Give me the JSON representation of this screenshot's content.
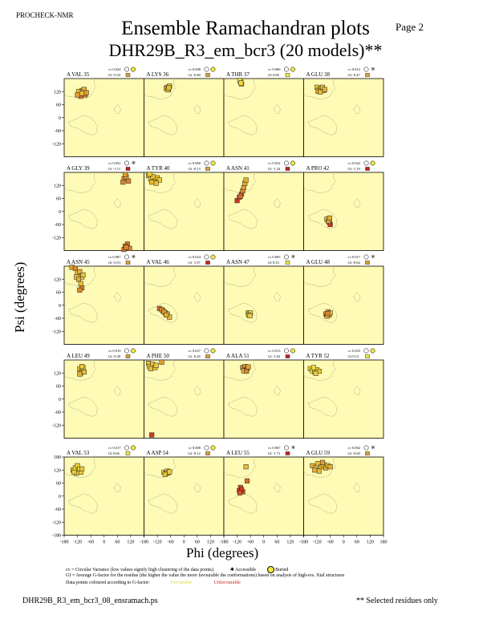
{
  "header": {
    "program": "PROCHECK-NMR",
    "page": "Page  2",
    "title": "Ensemble Ramachandran plots",
    "subtitle": "DHR29B_R3_em_bcr3 (20 models)**"
  },
  "axes": {
    "xlabel": "Phi (degrees)",
    "ylabel": "Psi (degrees)",
    "xticks": [
      "-180",
      "-120",
      "-60",
      "0",
      "60",
      "120",
      "180"
    ],
    "yticks": [
      "120",
      "60",
      "0",
      "-60",
      "-120"
    ],
    "yticks_bottom": [
      "180",
      "120",
      "60",
      "0",
      "-60",
      "-120",
      "-180"
    ]
  },
  "legend": {
    "cv_text": "cv = Circular Variance (low values signify high clustering of the data points).",
    "accessible": "Accessible",
    "buried": "Buried",
    "gf_text": "Gf = Average G-factor for the residue (the higher the value the more favourable the conformations) based on analysis of high-res. Xtal structures",
    "colour_text": "Data points coloured according to G-factor:",
    "favourable": "Favourable",
    "unfavourable": "Unfavourable"
  },
  "footer": {
    "file": "DHR29B_R3_em_bcr3_08_ensramach.ps",
    "note": "** Selected residues only"
  },
  "colors": {
    "panel_bg": "#fefbb6",
    "favourable": "#f4ea3c",
    "mid": "#e0a030",
    "unfavourable": "#cc1f1f"
  },
  "chart_data": {
    "type": "scatter",
    "xlim": [
      -180,
      180
    ],
    "ylim": [
      -180,
      180
    ],
    "panels": [
      {
        "label": "A VAL 35",
        "cv": "cv 0.024",
        "gf": "Gf -0.52",
        "access": "buried",
        "pts": [
          [
            -100,
            125,
            0.3
          ],
          [
            -110,
            110,
            0.5
          ],
          [
            -95,
            118,
            0.4
          ],
          [
            -85,
            105,
            0.6
          ],
          [
            -115,
            120,
            0.3
          ],
          [
            -90,
            130,
            0.4
          ],
          [
            -105,
            100,
            0.7
          ],
          [
            -80,
            115,
            0.5
          ],
          [
            -120,
            105,
            0.5
          ],
          [
            -100,
            112,
            0.3
          ]
        ]
      },
      {
        "label": "A LYS 36",
        "cv": "cv 0.008",
        "gf": "Gf -0.48",
        "access": "buried",
        "pts": [
          [
            -75,
            140,
            0.3
          ],
          [
            -70,
            130,
            0.4
          ],
          [
            -65,
            145,
            0.3
          ],
          [
            -80,
            135,
            0.4
          ],
          [
            -72,
            128,
            0.3
          ],
          [
            -68,
            138,
            0.3
          ]
        ]
      },
      {
        "label": "A THR 37",
        "cv": "cv 0.006",
        "gf": "Gf 0.06",
        "access": "buried",
        "pts": [
          [
            -105,
            165,
            0.1
          ],
          [
            -100,
            155,
            0.2
          ],
          [
            -108,
            172,
            0.1
          ],
          [
            -103,
            160,
            0.1
          ]
        ]
      },
      {
        "label": "A GLU 38",
        "cv": "cv 0.012",
        "gf": "Gf -0.47",
        "access": "accessible",
        "pts": [
          [
            -120,
            140,
            0.2
          ],
          [
            -110,
            130,
            0.3
          ],
          [
            -100,
            135,
            0.4
          ],
          [
            -90,
            125,
            0.3
          ],
          [
            -115,
            122,
            0.5
          ],
          [
            -95,
            140,
            0.3
          ],
          [
            -105,
            118,
            0.3
          ],
          [
            -85,
            130,
            0.4
          ]
        ]
      },
      {
        "label": "A GLY 39",
        "cv": "cv 0.052",
        "gf": "Gf -1.11",
        "access": "accessible",
        "pts": [
          [
            90,
            150,
            0.6
          ],
          [
            100,
            160,
            0.5
          ],
          [
            110,
            140,
            0.6
          ],
          [
            95,
            170,
            0.5
          ],
          [
            85,
            135,
            0.6
          ],
          [
            105,
            -150,
            0.7
          ],
          [
            95,
            -160,
            0.6
          ],
          [
            115,
            -170,
            0.6
          ],
          [
            90,
            -175,
            0.7
          ],
          [
            100,
            -165,
            0.6
          ]
        ]
      },
      {
        "label": "A TYR 40",
        "cv": "cv 0.060",
        "gf": "Gf -0.13",
        "access": "buried",
        "pts": [
          [
            -160,
            165,
            0.2
          ],
          [
            -150,
            150,
            0.2
          ],
          [
            -140,
            160,
            0.3
          ],
          [
            -130,
            140,
            0.2
          ],
          [
            -120,
            155,
            0.3
          ],
          [
            -110,
            145,
            0.2
          ],
          [
            -145,
            135,
            0.3
          ],
          [
            -155,
            172,
            0.2
          ],
          [
            -125,
            130,
            0.3
          ]
        ]
      },
      {
        "label": "A ASN 41",
        "cv": "cv 0.032",
        "gf": "Gf -1.24",
        "access": "buried",
        "pts": [
          [
            -120,
            50,
            0.9
          ],
          [
            -110,
            65,
            0.8
          ],
          [
            -100,
            80,
            0.7
          ],
          [
            -95,
            95,
            0.6
          ],
          [
            -90,
            110,
            0.5
          ],
          [
            -85,
            130,
            0.4
          ],
          [
            -80,
            145,
            0.4
          ],
          [
            -105,
            70,
            0.7
          ]
        ]
      },
      {
        "label": "A PRO 42",
        "cv": "cv 0.022",
        "gf": "Gf -1.19",
        "access": "buried",
        "pts": [
          [
            -70,
            -40,
            0.5
          ],
          [
            -65,
            -50,
            0.6
          ],
          [
            -60,
            -60,
            0.9
          ],
          [
            -75,
            -35,
            0.4
          ],
          [
            -68,
            -45,
            0.5
          ],
          [
            -63,
            -30,
            0.4
          ]
        ]
      },
      {
        "label": "A ASN 45",
        "cv": "cv 0.087",
        "gf": "Gf -0.51",
        "access": "accessible",
        "pts": [
          [
            -145,
            175,
            0.5
          ],
          [
            -130,
            170,
            0.6
          ],
          [
            -120,
            150,
            0.3
          ],
          [
            -110,
            155,
            0.4
          ],
          [
            -125,
            130,
            0.3
          ],
          [
            -100,
            130,
            0.2
          ],
          [
            -115,
            120,
            0.4
          ],
          [
            -105,
            100,
            0.3
          ],
          [
            -100,
            80,
            0.6
          ],
          [
            -110,
            70,
            0.6
          ],
          [
            -95,
            140,
            0.3
          ]
        ]
      },
      {
        "label": "A VAL 46",
        "cv": "cv 0.024",
        "gf": "Gf -1.07",
        "access": "buried",
        "pts": [
          [
            -110,
            -15,
            0.7
          ],
          [
            -95,
            -25,
            0.6
          ],
          [
            -85,
            -35,
            0.5
          ],
          [
            -75,
            -40,
            0.4
          ],
          [
            -65,
            -55,
            0.3
          ],
          [
            -100,
            -20,
            0.6
          ],
          [
            -90,
            -30,
            0.5
          ],
          [
            -80,
            -45,
            0.4
          ]
        ]
      },
      {
        "label": "A ASN 47",
        "cv": "cv 0.005",
        "gf": "Gf 0.33",
        "access": "accessible",
        "pts": [
          [
            -70,
            -35,
            0.1
          ],
          [
            -65,
            -40,
            0.2
          ],
          [
            -60,
            -35,
            0.1
          ],
          [
            -68,
            -45,
            0.1
          ],
          [
            -62,
            -48,
            0.2
          ]
        ]
      },
      {
        "label": "A GLU 48",
        "cv": "cv 0.017",
        "gf": "Gf -0.64",
        "access": "accessible",
        "pts": [
          [
            -80,
            -40,
            0.5
          ],
          [
            -70,
            -30,
            0.4
          ],
          [
            -65,
            -45,
            0.4
          ],
          [
            -75,
            -50,
            0.5
          ],
          [
            -60,
            -35,
            0.3
          ],
          [
            -72,
            -38,
            0.6
          ]
        ]
      },
      {
        "label": "A LEU 49",
        "cv": "cv 0.019",
        "gf": "Gf -0.39",
        "access": "buried",
        "pts": [
          [
            -110,
            140,
            0.3
          ],
          [
            -100,
            130,
            0.2
          ],
          [
            -95,
            145,
            0.3
          ],
          [
            -105,
            120,
            0.2
          ],
          [
            -90,
            125,
            0.3
          ],
          [
            -100,
            150,
            0.2
          ],
          [
            -110,
            115,
            0.4
          ]
        ]
      },
      {
        "label": "A PHE 50",
        "cv": "cv 0.027",
        "gf": "Gf -0.26",
        "access": "buried",
        "pts": [
          [
            -160,
            165,
            0.3
          ],
          [
            -155,
            150,
            0.2
          ],
          [
            -140,
            160,
            0.3
          ],
          [
            -130,
            145,
            0.3
          ],
          [
            -125,
            155,
            0.2
          ],
          [
            -100,
            170,
            0.5
          ],
          [
            -145,
            -165,
            0.9
          ],
          [
            -150,
            140,
            0.3
          ]
        ]
      },
      {
        "label": "A ALA 51",
        "cv": "cv 0.013",
        "gf": "Gf -1.02",
        "access": "buried",
        "pts": [
          [
            -95,
            145,
            0.6
          ],
          [
            -85,
            150,
            0.5
          ],
          [
            -80,
            135,
            0.6
          ],
          [
            -75,
            140,
            0.5
          ],
          [
            -90,
            130,
            0.4
          ],
          [
            -70,
            148,
            0.5
          ],
          [
            -78,
            128,
            0.6
          ]
        ]
      },
      {
        "label": "A TYR 52",
        "cv": "cv 0.025",
        "gf": "Gf 0.13",
        "access": "buried",
        "pts": [
          [
            -150,
            140,
            0.2
          ],
          [
            -140,
            130,
            0.1
          ],
          [
            -130,
            125,
            0.2
          ],
          [
            -120,
            135,
            0.1
          ],
          [
            -110,
            128,
            0.2
          ],
          [
            -135,
            145,
            0.1
          ],
          [
            -125,
            118,
            0.2
          ]
        ]
      },
      {
        "label": "A VAL 53",
        "cv": "cv 0.017",
        "gf": "Gf 0.06",
        "access": "buried",
        "pts": [
          [
            -140,
            120,
            0.2
          ],
          [
            -130,
            130,
            0.1
          ],
          [
            -120,
            140,
            0.2
          ],
          [
            -115,
            115,
            0.1
          ],
          [
            -105,
            110,
            0.2
          ],
          [
            -110,
            125,
            0.1
          ],
          [
            -125,
            105,
            0.2
          ],
          [
            -135,
            110,
            0.2
          ],
          [
            -100,
            125,
            0.2
          ]
        ]
      },
      {
        "label": "A ASP 54",
        "cv": "cv 0.008",
        "gf": "Gf -0.12",
        "access": "buried",
        "pts": [
          [
            -90,
            110,
            0.2
          ],
          [
            -80,
            105,
            0.3
          ],
          [
            -75,
            115,
            0.2
          ],
          [
            -70,
            108,
            0.2
          ],
          [
            -85,
            100,
            0.3
          ],
          [
            -65,
            112,
            0.2
          ]
        ]
      },
      {
        "label": "A LEU 55",
        "cv": "cv 0.067",
        "gf": "Gf -1.71",
        "access": "accessible",
        "pts": [
          [
            -80,
            135,
            0.3
          ],
          [
            -75,
            70,
            0.7
          ],
          [
            -105,
            40,
            0.8
          ],
          [
            -110,
            25,
            0.9
          ],
          [
            -95,
            20,
            0.8
          ],
          [
            -100,
            30,
            0.9
          ],
          [
            -108,
            15,
            0.8
          ]
        ]
      },
      {
        "label": "A GLU 59",
        "cv": "cv 0.062",
        "gf": "Gf -0.60",
        "access": "accessible",
        "pts": [
          [
            -140,
            140,
            0.4
          ],
          [
            -125,
            130,
            0.3
          ],
          [
            -115,
            150,
            0.3
          ],
          [
            -100,
            135,
            0.4
          ],
          [
            -90,
            145,
            0.3
          ],
          [
            -80,
            130,
            0.4
          ],
          [
            -70,
            140,
            0.3
          ],
          [
            -130,
            120,
            0.4
          ],
          [
            -110,
            115,
            0.3
          ],
          [
            -60,
            135,
            0.4
          ],
          [
            -95,
            155,
            0.5
          ]
        ]
      }
    ]
  }
}
